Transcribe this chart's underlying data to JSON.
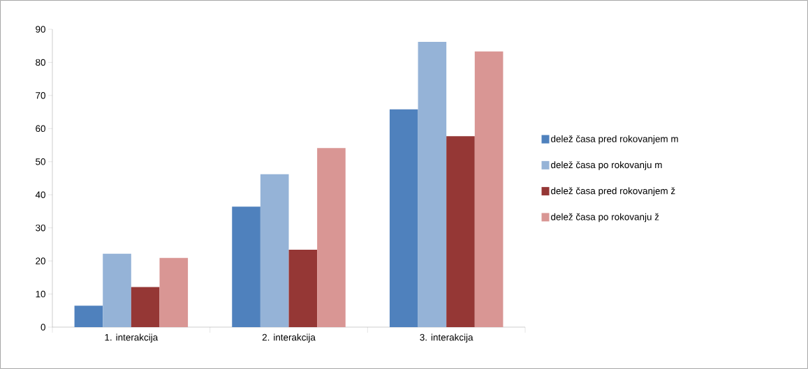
{
  "chart_data": {
    "type": "bar",
    "categories": [
      "1. interakcija",
      "2. interakcija",
      "3. interakcija"
    ],
    "series": [
      {
        "name": "delež časa pred rokovanjem m",
        "color": "#4f81bd",
        "values": [
          6.5,
          36.4,
          65.8
        ]
      },
      {
        "name": "delež časa po rokovanju m",
        "color": "#95b3d7",
        "values": [
          22.2,
          46.2,
          86.2
        ]
      },
      {
        "name": "delež časa pred rokovanjem ž",
        "color": "#953735",
        "values": [
          12.1,
          23.4,
          57.7
        ]
      },
      {
        "name": "delež časa po rokovanju ž",
        "color": "#d99694",
        "values": [
          20.9,
          54.1,
          83.3
        ]
      }
    ],
    "ylim": [
      0,
      90
    ],
    "yticks": [
      0,
      10,
      20,
      30,
      40,
      50,
      60,
      70,
      80,
      90
    ],
    "grid": false,
    "legend": "right"
  }
}
